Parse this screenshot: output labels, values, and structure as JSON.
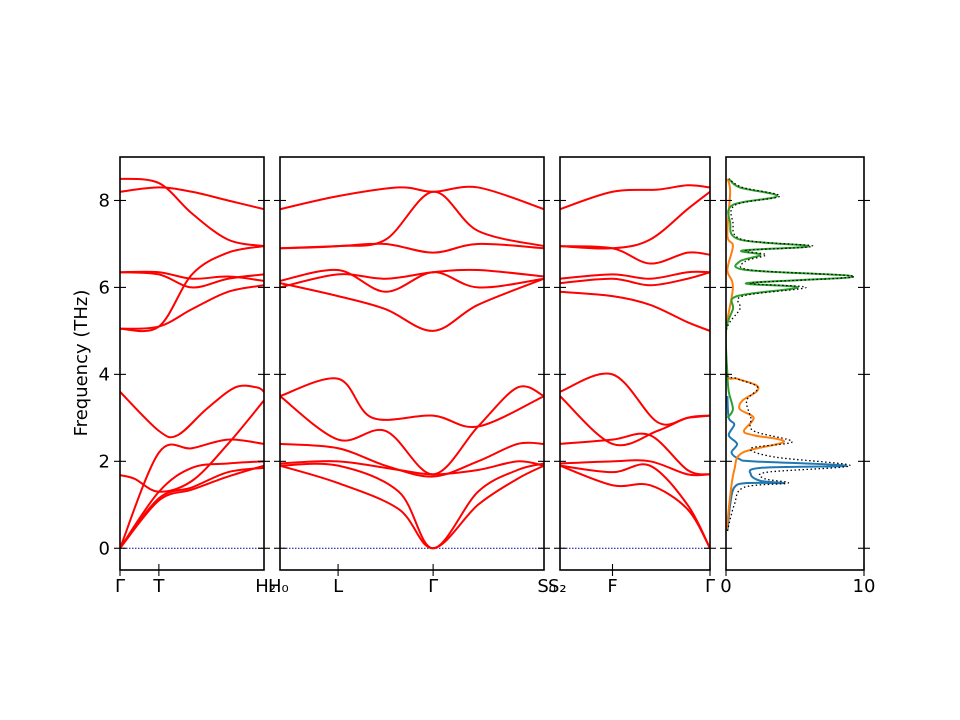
{
  "chart_data": {
    "type": "line",
    "ylabel": "Frequency (THz)",
    "ylim": [
      -0.5,
      9.0
    ],
    "yticks": [
      0,
      2,
      4,
      6,
      8
    ],
    "zero_line_color": "#0000aa",
    "band_color": "#ff0000",
    "panels": [
      {
        "kind": "band_segment",
        "xlim": [
          0,
          1
        ],
        "xticks": [
          {
            "x": 0,
            "label": "Γ"
          },
          {
            "x": 0.27,
            "label": "T"
          }
        ],
        "right_label": "H₂",
        "series": [
          {
            "x": [
              0,
              0.27,
              0.5,
              0.75,
              1
            ],
            "values": [
              0,
              1.3,
              1.85,
              1.95,
              2.0
            ]
          },
          {
            "x": [
              0,
              0.27,
              0.5,
              0.75,
              1
            ],
            "values": [
              0,
              1.1,
              1.35,
              1.65,
              1.9
            ]
          },
          {
            "x": [
              0,
              0.27,
              0.5,
              0.75,
              1
            ],
            "values": [
              0,
              1.15,
              1.4,
              1.75,
              1.85
            ]
          },
          {
            "x": [
              0,
              0.27,
              0.5,
              0.75,
              1
            ],
            "values": [
              0,
              2.2,
              2.3,
              2.5,
              2.4
            ]
          },
          {
            "x": [
              0,
              0.1,
              0.27,
              0.5,
              0.75,
              1
            ],
            "values": [
              1.68,
              1.6,
              1.3,
              1.55,
              2.4,
              3.4
            ]
          },
          {
            "x": [
              0,
              0.27,
              0.4,
              0.6,
              0.8,
              0.95,
              1
            ],
            "values": [
              3.6,
              2.7,
              2.6,
              3.2,
              3.7,
              3.7,
              3.6
            ]
          },
          {
            "x": [
              0,
              0.27,
              0.5,
              0.75,
              1
            ],
            "values": [
              5.05,
              5.1,
              5.5,
              5.9,
              6.05
            ]
          },
          {
            "x": [
              0,
              0.27,
              0.5,
              0.75,
              1
            ],
            "values": [
              5.05,
              5.1,
              6.3,
              6.8,
              6.95
            ]
          },
          {
            "x": [
              0,
              0.27,
              0.5,
              0.75,
              1
            ],
            "values": [
              6.35,
              6.35,
              6.2,
              6.25,
              6.15
            ]
          },
          {
            "x": [
              0,
              0.27,
              0.5,
              0.75,
              1
            ],
            "values": [
              6.35,
              6.3,
              6.0,
              6.2,
              6.3
            ]
          },
          {
            "x": [
              0,
              0.27,
              0.5,
              0.75,
              1
            ],
            "values": [
              8.2,
              8.3,
              8.2,
              8.0,
              7.8
            ]
          },
          {
            "x": [
              0,
              0.27,
              0.5,
              0.75,
              1
            ],
            "values": [
              8.5,
              8.4,
              7.7,
              7.1,
              6.95
            ]
          }
        ]
      },
      {
        "kind": "band_segment",
        "xlim": [
          0,
          1
        ],
        "xticks": [
          {
            "x": 0.22,
            "label": "L"
          },
          {
            "x": 0.58,
            "label": "Γ"
          }
        ],
        "left_label": "H₀",
        "right_label": "S₀",
        "series": [
          {
            "x": [
              0,
              0.22,
              0.45,
              0.58,
              0.75,
              0.9,
              1
            ],
            "values": [
              1.9,
              1.5,
              0.9,
              0,
              1.0,
              1.6,
              1.9
            ]
          },
          {
            "x": [
              0,
              0.22,
              0.45,
              0.58,
              0.75,
              0.9,
              1
            ],
            "values": [
              1.9,
              1.9,
              1.3,
              0,
              1.3,
              1.8,
              1.95
            ]
          },
          {
            "x": [
              0,
              0.22,
              0.45,
              0.58,
              0.75,
              0.9,
              1
            ],
            "values": [
              1.95,
              2.0,
              1.8,
              1.7,
              1.8,
              2.0,
              1.9
            ]
          },
          {
            "x": [
              0,
              0.22,
              0.4,
              0.58,
              0.75,
              0.9,
              1
            ],
            "values": [
              2.4,
              2.3,
              1.9,
              1.65,
              2.0,
              2.4,
              2.4
            ]
          },
          {
            "x": [
              0,
              0.22,
              0.4,
              0.58,
              0.75,
              0.9,
              1
            ],
            "values": [
              3.5,
              2.5,
              2.7,
              1.7,
              2.8,
              3.7,
              3.5
            ]
          },
          {
            "x": [
              0,
              0.22,
              0.35,
              0.58,
              0.75,
              1
            ],
            "values": [
              3.5,
              3.9,
              3.0,
              3.05,
              2.8,
              3.5
            ]
          },
          {
            "x": [
              0,
              0.22,
              0.4,
              0.58,
              0.75,
              1
            ],
            "values": [
              6.1,
              5.8,
              5.5,
              5.0,
              5.6,
              6.2
            ]
          },
          {
            "x": [
              0,
              0.22,
              0.4,
              0.58,
              0.75,
              1
            ],
            "values": [
              6.15,
              6.4,
              5.9,
              6.35,
              6.0,
              6.2
            ]
          },
          {
            "x": [
              0,
              0.22,
              0.4,
              0.58,
              0.75,
              1
            ],
            "values": [
              6.0,
              6.3,
              6.2,
              6.35,
              6.4,
              6.25
            ]
          },
          {
            "x": [
              0,
              0.22,
              0.4,
              0.58,
              0.75,
              1
            ],
            "values": [
              6.9,
              6.95,
              7.0,
              6.8,
              7.0,
              6.9
            ]
          },
          {
            "x": [
              0,
              0.22,
              0.4,
              0.58,
              0.75,
              1
            ],
            "values": [
              6.9,
              6.95,
              7.1,
              8.2,
              7.3,
              6.95
            ]
          },
          {
            "x": [
              0,
              0.22,
              0.45,
              0.58,
              0.75,
              1
            ],
            "values": [
              7.8,
              8.1,
              8.3,
              8.2,
              8.3,
              7.8
            ]
          }
        ]
      },
      {
        "kind": "band_segment",
        "xlim": [
          0,
          1
        ],
        "xticks": [
          {
            "x": 0.35,
            "label": "F"
          },
          {
            "x": 1,
            "label": "Γ"
          }
        ],
        "left_label": "S₂",
        "series": [
          {
            "x": [
              0,
              0.35,
              0.6,
              0.85,
              1
            ],
            "values": [
              1.9,
              1.45,
              1.45,
              0.9,
              0
            ]
          },
          {
            "x": [
              0,
              0.35,
              0.6,
              0.85,
              1
            ],
            "values": [
              1.9,
              1.75,
              1.9,
              1.0,
              0
            ]
          },
          {
            "x": [
              0,
              0.35,
              0.6,
              0.85,
              1
            ],
            "values": [
              1.95,
              2.0,
              2.0,
              1.7,
              1.7
            ]
          },
          {
            "x": [
              0,
              0.35,
              0.6,
              0.85,
              1
            ],
            "values": [
              2.4,
              2.5,
              2.6,
              1.8,
              1.7
            ]
          },
          {
            "x": [
              0,
              0.35,
              0.65,
              0.85,
              1
            ],
            "values": [
              3.5,
              2.4,
              2.7,
              3.0,
              3.05
            ]
          },
          {
            "x": [
              0,
              0.35,
              0.65,
              0.85,
              1
            ],
            "values": [
              3.6,
              4.0,
              2.9,
              3.0,
              3.05
            ]
          },
          {
            "x": [
              0,
              0.35,
              0.6,
              0.85,
              1
            ],
            "values": [
              5.9,
              5.8,
              5.6,
              5.2,
              5.0
            ]
          },
          {
            "x": [
              0,
              0.35,
              0.6,
              0.85,
              1
            ],
            "values": [
              6.1,
              6.2,
              6.05,
              6.2,
              6.35
            ]
          },
          {
            "x": [
              0,
              0.35,
              0.6,
              0.85,
              1
            ],
            "values": [
              6.2,
              6.3,
              6.2,
              6.35,
              6.35
            ]
          },
          {
            "x": [
              0,
              0.35,
              0.6,
              0.85,
              1
            ],
            "values": [
              6.95,
              6.9,
              6.55,
              6.8,
              6.75
            ]
          },
          {
            "x": [
              0,
              0.35,
              0.6,
              0.85,
              1
            ],
            "values": [
              6.95,
              6.9,
              7.1,
              7.8,
              8.2
            ]
          },
          {
            "x": [
              0,
              0.35,
              0.65,
              0.85,
              1
            ],
            "values": [
              7.8,
              8.2,
              8.25,
              8.35,
              8.3
            ]
          }
        ]
      },
      {
        "kind": "dos",
        "xlim": [
          0,
          10
        ],
        "xticks": [
          {
            "x": 0,
            "label": "0"
          },
          {
            "x": 10,
            "label": "10"
          }
        ],
        "series": [
          {
            "name": "",
            "color": "#1f77b4",
            "points": [
              [
                0.1,
                0.4
              ],
              [
                0.3,
                1.0
              ],
              [
                0.6,
                1.4
              ],
              [
                1.5,
                1.5
              ],
              [
                4.2,
                1.5
              ],
              [
                2.5,
                1.55
              ],
              [
                1.8,
                1.7
              ],
              [
                2.5,
                1.85
              ],
              [
                8.7,
                1.9
              ],
              [
                2.0,
                2.0
              ],
              [
                1.0,
                2.05
              ],
              [
                0.4,
                2.2
              ],
              [
                0.8,
                2.4
              ],
              [
                0.2,
                2.6
              ],
              [
                0.6,
                2.85
              ],
              [
                0.2,
                3.0
              ],
              [
                0.1,
                3.5
              ]
            ]
          },
          {
            "name": "",
            "color": "#ff7f0e",
            "points": [
              [
                0.05,
                0.4
              ],
              [
                0.3,
                1.2
              ],
              [
                0.6,
                1.8
              ],
              [
                1.2,
                2.2
              ],
              [
                4.2,
                2.45
              ],
              [
                2.0,
                2.6
              ],
              [
                1.3,
                2.7
              ],
              [
                2.0,
                3.0
              ],
              [
                1.0,
                3.2
              ],
              [
                1.2,
                3.4
              ],
              [
                2.2,
                3.6
              ],
              [
                2.2,
                3.75
              ],
              [
                0.8,
                3.9
              ],
              [
                0.1,
                4.0
              ],
              [
                0.0,
                5.0
              ],
              [
                0.5,
                6.0
              ],
              [
                0.1,
                6.4
              ],
              [
                0.5,
                6.95
              ],
              [
                0.1,
                7.2
              ],
              [
                0.3,
                8.2
              ],
              [
                0.1,
                8.5
              ]
            ]
          },
          {
            "name": "",
            "color": "#2ca02c",
            "points": [
              [
                0.1,
                3.0
              ],
              [
                0.5,
                3.2
              ],
              [
                0.2,
                3.6
              ],
              [
                0.1,
                4.0
              ],
              [
                0.0,
                5.0
              ],
              [
                0.5,
                5.5
              ],
              [
                0.8,
                5.8
              ],
              [
                5.2,
                6.0
              ],
              [
                1.5,
                6.1
              ],
              [
                9.2,
                6.25
              ],
              [
                1.5,
                6.4
              ],
              [
                1.0,
                6.6
              ],
              [
                2.5,
                6.75
              ],
              [
                1.2,
                6.85
              ],
              [
                6.0,
                6.95
              ],
              [
                1.0,
                7.1
              ],
              [
                0.3,
                7.5
              ],
              [
                0.5,
                7.9
              ],
              [
                3.7,
                8.1
              ],
              [
                1.0,
                8.3
              ],
              [
                0.2,
                8.5
              ]
            ]
          },
          {
            "name": "",
            "color": "#000000",
            "dotted": true,
            "points": [
              [
                0.1,
                0.4
              ],
              [
                0.6,
                1.0
              ],
              [
                1.3,
                1.4
              ],
              [
                4.5,
                1.5
              ],
              [
                2.8,
                1.6
              ],
              [
                3.0,
                1.75
              ],
              [
                9.0,
                1.9
              ],
              [
                3.5,
                2.1
              ],
              [
                1.8,
                2.3
              ],
              [
                4.8,
                2.45
              ],
              [
                2.0,
                2.7
              ],
              [
                1.8,
                3.0
              ],
              [
                1.5,
                3.4
              ],
              [
                2.3,
                3.7
              ],
              [
                0.8,
                3.9
              ],
              [
                0.0,
                4.05
              ],
              [
                0.0,
                5.0
              ],
              [
                1.0,
                5.5
              ],
              [
                1.2,
                5.8
              ],
              [
                5.8,
                6.0
              ],
              [
                1.8,
                6.1
              ],
              [
                9.3,
                6.25
              ],
              [
                1.8,
                6.4
              ],
              [
                1.4,
                6.6
              ],
              [
                2.9,
                6.75
              ],
              [
                1.5,
                6.85
              ],
              [
                6.3,
                6.95
              ],
              [
                1.2,
                7.1
              ],
              [
                0.5,
                7.5
              ],
              [
                0.7,
                7.9
              ],
              [
                3.9,
                8.1
              ],
              [
                1.2,
                8.3
              ],
              [
                0.2,
                8.5
              ]
            ]
          }
        ]
      }
    ]
  }
}
